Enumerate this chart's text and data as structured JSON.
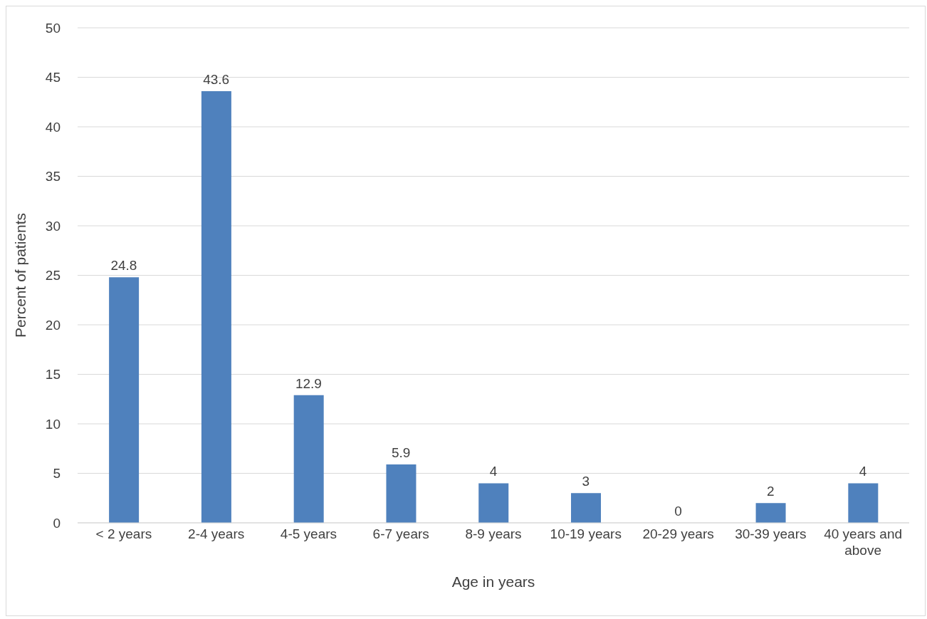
{
  "chart_data": {
    "type": "bar",
    "xlabel": "Age in years",
    "ylabel": "Percent of patients",
    "categories": [
      "< 2 years",
      "2-4 years",
      "4-5 years",
      "6-7 years",
      "8-9 years",
      "10-19 years",
      "20-29 years",
      "30-39 years",
      "40 years and above"
    ],
    "values": [
      24.8,
      43.6,
      12.9,
      5.9,
      4,
      3,
      0,
      2,
      4
    ],
    "color": "#4f81bd",
    "ylim": [
      0,
      50
    ],
    "yticks": [
      0,
      5,
      10,
      15,
      20,
      25,
      30,
      35,
      40,
      45,
      50
    ],
    "grid": "y",
    "data_labels": true
  }
}
